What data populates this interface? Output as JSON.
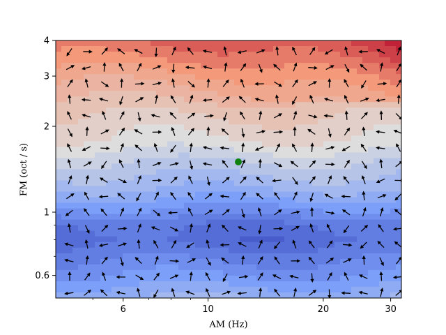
{
  "chart_data": {
    "type": "heatmap",
    "subtype": "filled-contour with quiver arrows",
    "xlabel": "AM (Hz)",
    "ylabel": "FM (oct / s)",
    "xscale": "log",
    "yscale": "log",
    "xlim": [
      4,
      32
    ],
    "ylim": [
      0.5,
      4
    ],
    "xticks": [
      {
        "value": 6,
        "label": "6"
      },
      {
        "value": 10,
        "label": "10"
      },
      {
        "value": 20,
        "label": "20"
      },
      {
        "value": 30,
        "label": "30"
      }
    ],
    "yticks": [
      {
        "value": 0.6,
        "label": "0.6"
      },
      {
        "value": 1,
        "label": "1"
      },
      {
        "value": 2,
        "label": "2"
      },
      {
        "value": 3,
        "label": "3"
      },
      {
        "value": 4,
        "label": "4"
      }
    ],
    "colormap": "coolwarm",
    "colors": {
      "low": "#3b4cc0",
      "mid": "#dddddd",
      "high": "#b40426",
      "marker": "#108010"
    },
    "grid": false,
    "highlight_point": {
      "x": 12,
      "y": 1.5,
      "color": "green"
    },
    "contour_levels_by_fm": [
      {
        "fm": 0.5,
        "level": -0.35
      },
      {
        "fm": 0.6,
        "level": -0.55
      },
      {
        "fm": 0.8,
        "level": -0.8
      },
      {
        "fm": 0.9,
        "level": -0.75
      },
      {
        "fm": 1.0,
        "level": -0.6
      },
      {
        "fm": 1.2,
        "level": -0.35
      },
      {
        "fm": 1.5,
        "level": -0.15
      },
      {
        "fm": 1.8,
        "level": 0.05
      },
      {
        "fm": 2.0,
        "level": 0.1
      },
      {
        "fm": 2.5,
        "level": 0.25
      },
      {
        "fm": 3.0,
        "level": 0.4
      },
      {
        "fm": 3.5,
        "level": 0.55
      },
      {
        "fm": 4.0,
        "level": 0.65
      }
    ],
    "quiver_grid": {
      "nx": 20,
      "ny": 16,
      "arrow_color": "#000000"
    }
  }
}
